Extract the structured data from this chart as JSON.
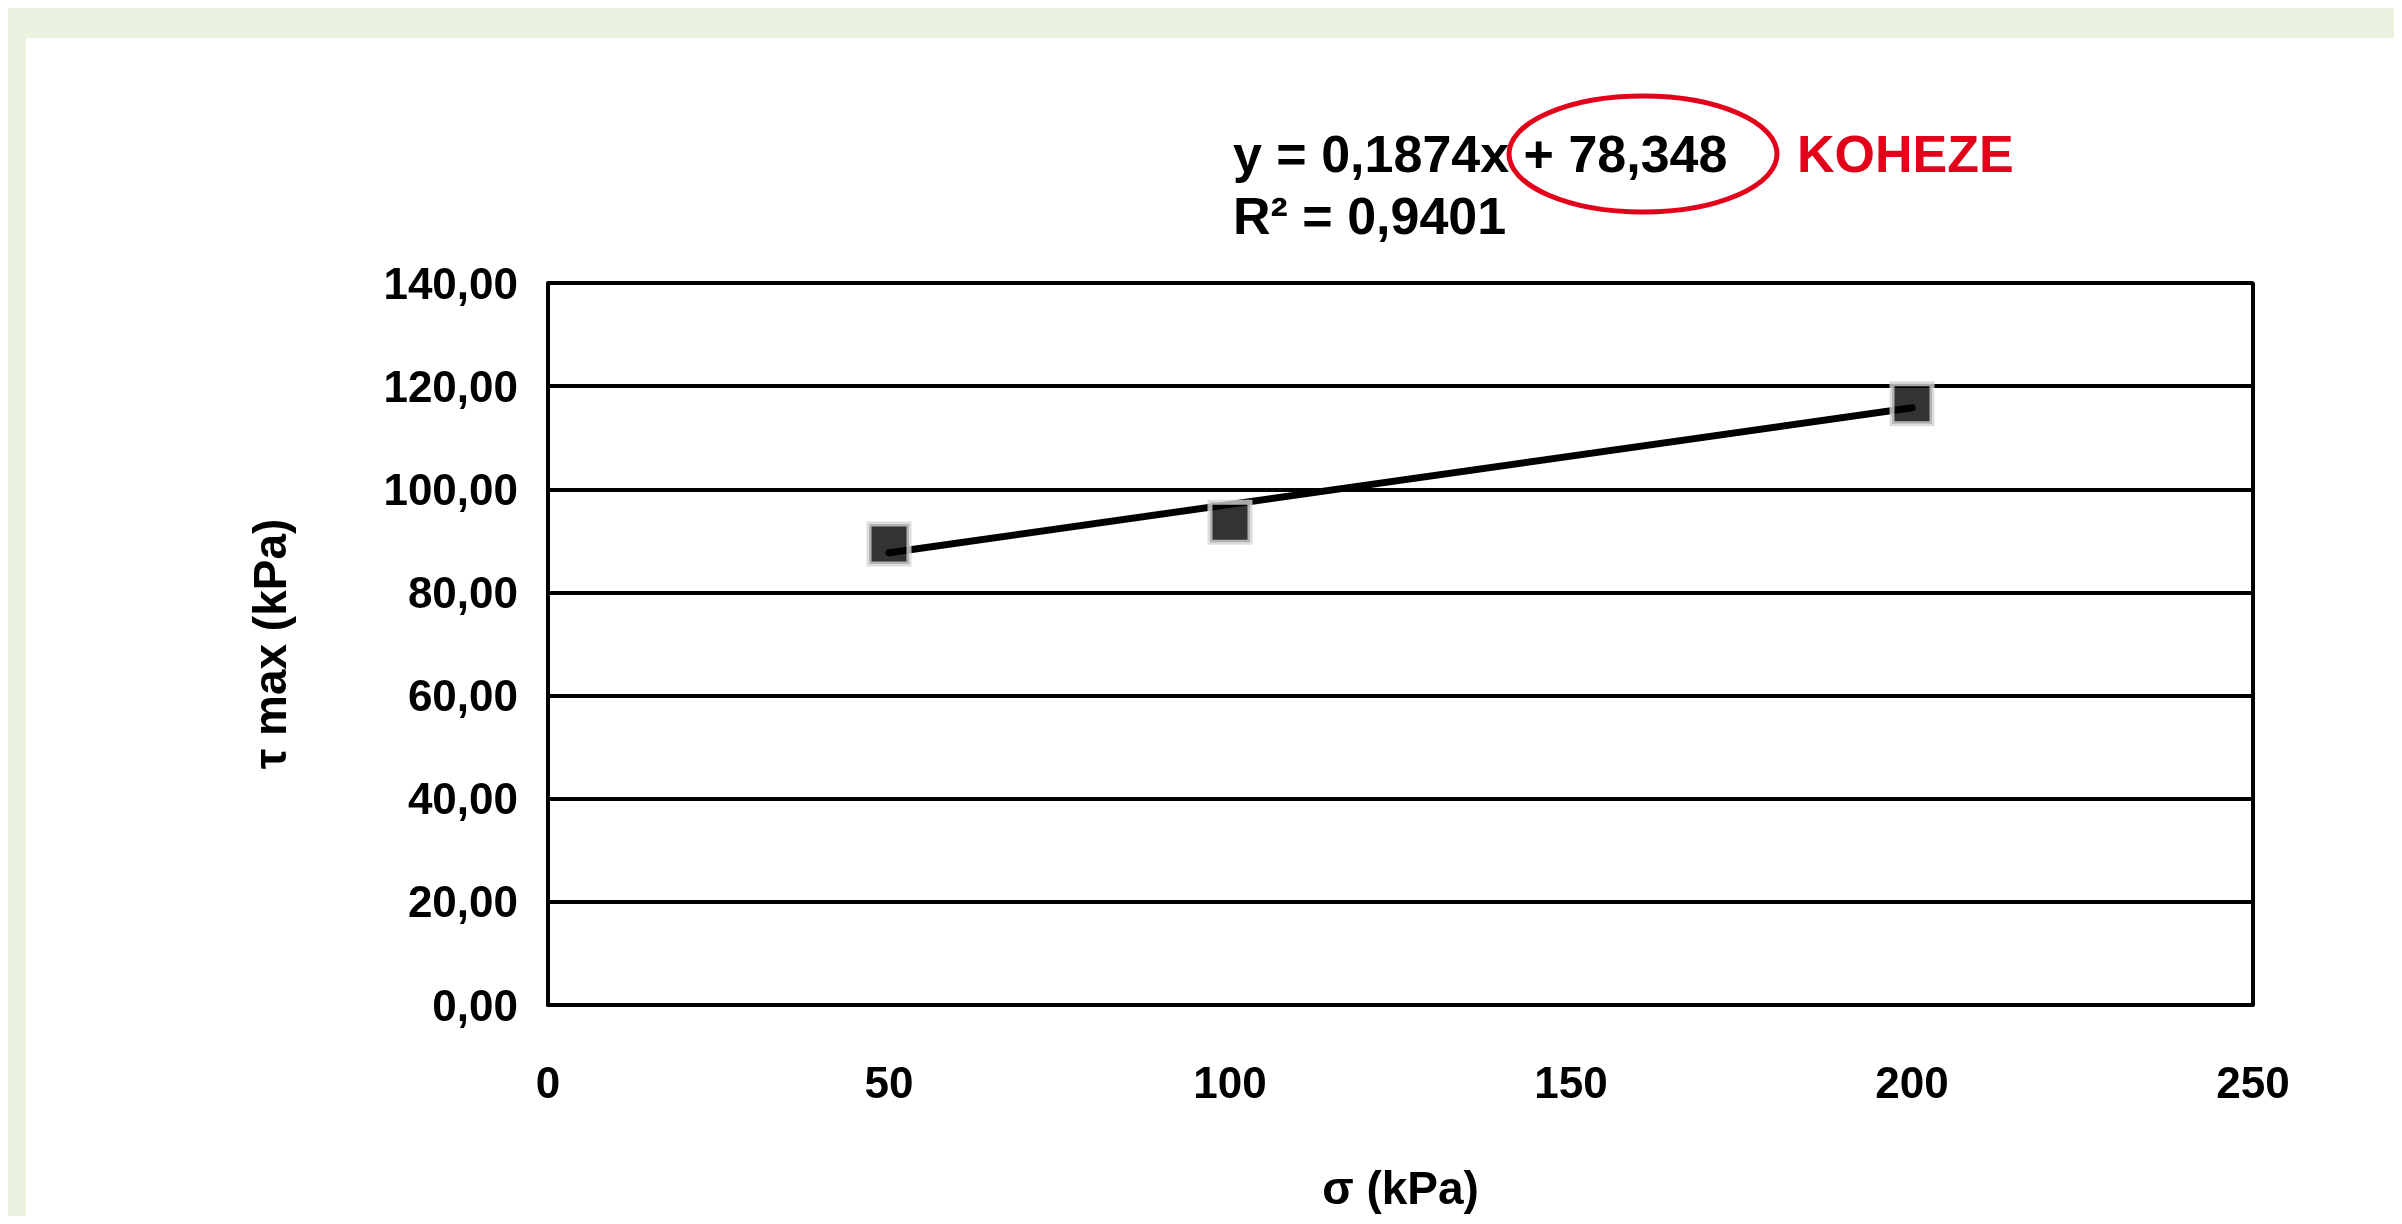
{
  "chart_data": {
    "type": "scatter",
    "xlabel": "σ (kPa)",
    "ylabel": "τ max (kPa)",
    "annotations": [
      "y = 0,1874x + 78,348",
      "R² = 0,9401",
      "KOHEZE"
    ],
    "x": [
      50,
      100,
      200
    ],
    "series": [
      {
        "color": "#000000",
        "marker": "square",
        "values": [
          89.4,
          93.6,
          116.6
        ]
      },
      {
        "type": "line",
        "color": "#000000",
        "marker": "none",
        "line_style": "solid",
        "x": [
          50,
          200
        ],
        "values": [
          87.7,
          115.8
        ]
      }
    ],
    "xlim": [
      0,
      250
    ],
    "xticks": [
      0,
      50,
      100,
      150,
      200,
      250
    ],
    "ylim": [
      0,
      140
    ],
    "yticks": [
      {
        "value": 0,
        "label": "0,00"
      },
      {
        "value": 20,
        "label": "20,00"
      },
      {
        "value": 40,
        "label": "40,00"
      },
      {
        "value": 60,
        "label": "60,00"
      },
      {
        "value": 80,
        "label": "80,00"
      },
      {
        "value": 100,
        "label": "100,00"
      },
      {
        "value": 120,
        "label": "120,00"
      },
      {
        "value": 140,
        "label": "140,00"
      }
    ],
    "grid": "y"
  }
}
